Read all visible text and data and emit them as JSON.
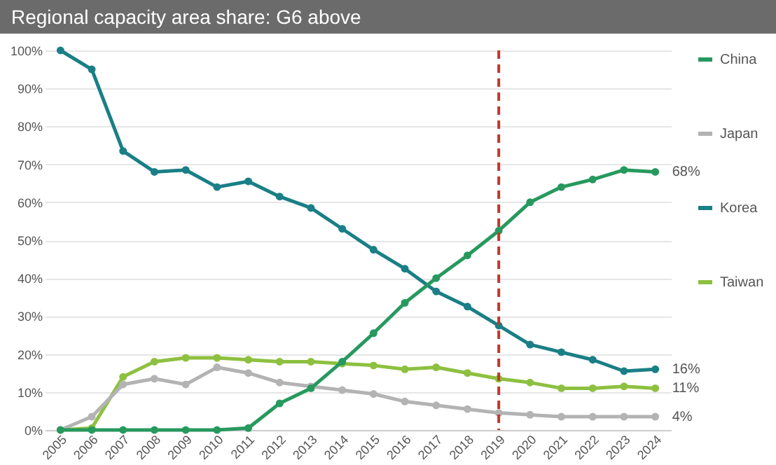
{
  "chart_data": {
    "type": "line",
    "title": "Regional capacity area share: G6 above",
    "categories": [
      "2005",
      "2006",
      "2007",
      "2008",
      "2009",
      "2010",
      "2011",
      "2012",
      "2013",
      "2014",
      "2015",
      "2016",
      "2017",
      "2018",
      "2019",
      "2020",
      "2021",
      "2022",
      "2023",
      "2024"
    ],
    "series": [
      {
        "name": "China",
        "color": "#27995e",
        "values": [
          0,
          0,
          0,
          0,
          0,
          0,
          0.5,
          7,
          11,
          18,
          25.5,
          33.5,
          40,
          46,
          52.5,
          60,
          64,
          66,
          68.5,
          68
        ],
        "value_labels": [
          null,
          null,
          null,
          null,
          null,
          null,
          null,
          null,
          null,
          null,
          null,
          null,
          null,
          null,
          null,
          null,
          null,
          null,
          null,
          "68%"
        ]
      },
      {
        "name": "Japan",
        "color": "#b3b3b3",
        "values": [
          0,
          3.5,
          12,
          13.5,
          12,
          16.5,
          15,
          12.5,
          11.5,
          10.5,
          9.5,
          7.5,
          6.5,
          5.5,
          4.5,
          4,
          3.5,
          3.5,
          3.5,
          3.5
        ],
        "value_labels": [
          null,
          null,
          null,
          null,
          null,
          null,
          null,
          null,
          null,
          null,
          null,
          null,
          null,
          null,
          null,
          null,
          null,
          null,
          null,
          "4%"
        ]
      },
      {
        "name": "Korea",
        "color": "#1a7f86",
        "values": [
          100,
          95,
          73.5,
          68,
          68.5,
          64,
          65.5,
          61.5,
          58.5,
          53,
          47.5,
          42.5,
          36.5,
          32.5,
          27.5,
          22.5,
          20.5,
          18.5,
          15.5,
          16
        ],
        "value_labels": [
          null,
          null,
          null,
          null,
          null,
          null,
          null,
          null,
          null,
          null,
          null,
          null,
          null,
          null,
          null,
          null,
          null,
          null,
          null,
          "16%"
        ]
      },
      {
        "name": "Taiwan",
        "color": "#8dc040",
        "values": [
          0,
          0.5,
          14,
          18,
          19,
          19,
          18.5,
          18,
          18,
          17.5,
          17,
          16,
          16.5,
          15,
          13.5,
          12.5,
          11,
          11,
          11.5,
          11
        ],
        "value_labels": [
          null,
          null,
          null,
          null,
          null,
          null,
          null,
          null,
          null,
          null,
          null,
          null,
          null,
          null,
          null,
          null,
          null,
          null,
          null,
          "11%"
        ]
      }
    ],
    "ylim": [
      0,
      100
    ],
    "yticks": [
      {
        "value": 0,
        "label": "0%"
      },
      {
        "value": 10,
        "label": "10%"
      },
      {
        "value": 20,
        "label": "20%"
      },
      {
        "value": 30,
        "label": "30%"
      },
      {
        "value": 40,
        "label": "40%"
      },
      {
        "value": 50,
        "label": "50%"
      },
      {
        "value": 60,
        "label": "60%"
      },
      {
        "value": 70,
        "label": "70%"
      },
      {
        "value": 80,
        "label": "80%"
      },
      {
        "value": 90,
        "label": "90%"
      },
      {
        "value": 100,
        "label": "100%"
      }
    ],
    "grid": "y",
    "legend": "right",
    "marker": "circle",
    "line_style": "solid",
    "ref_lines": [
      {
        "axis": "x",
        "value": "2019",
        "color": "#c0392b",
        "line_style": "dashed"
      }
    ]
  }
}
